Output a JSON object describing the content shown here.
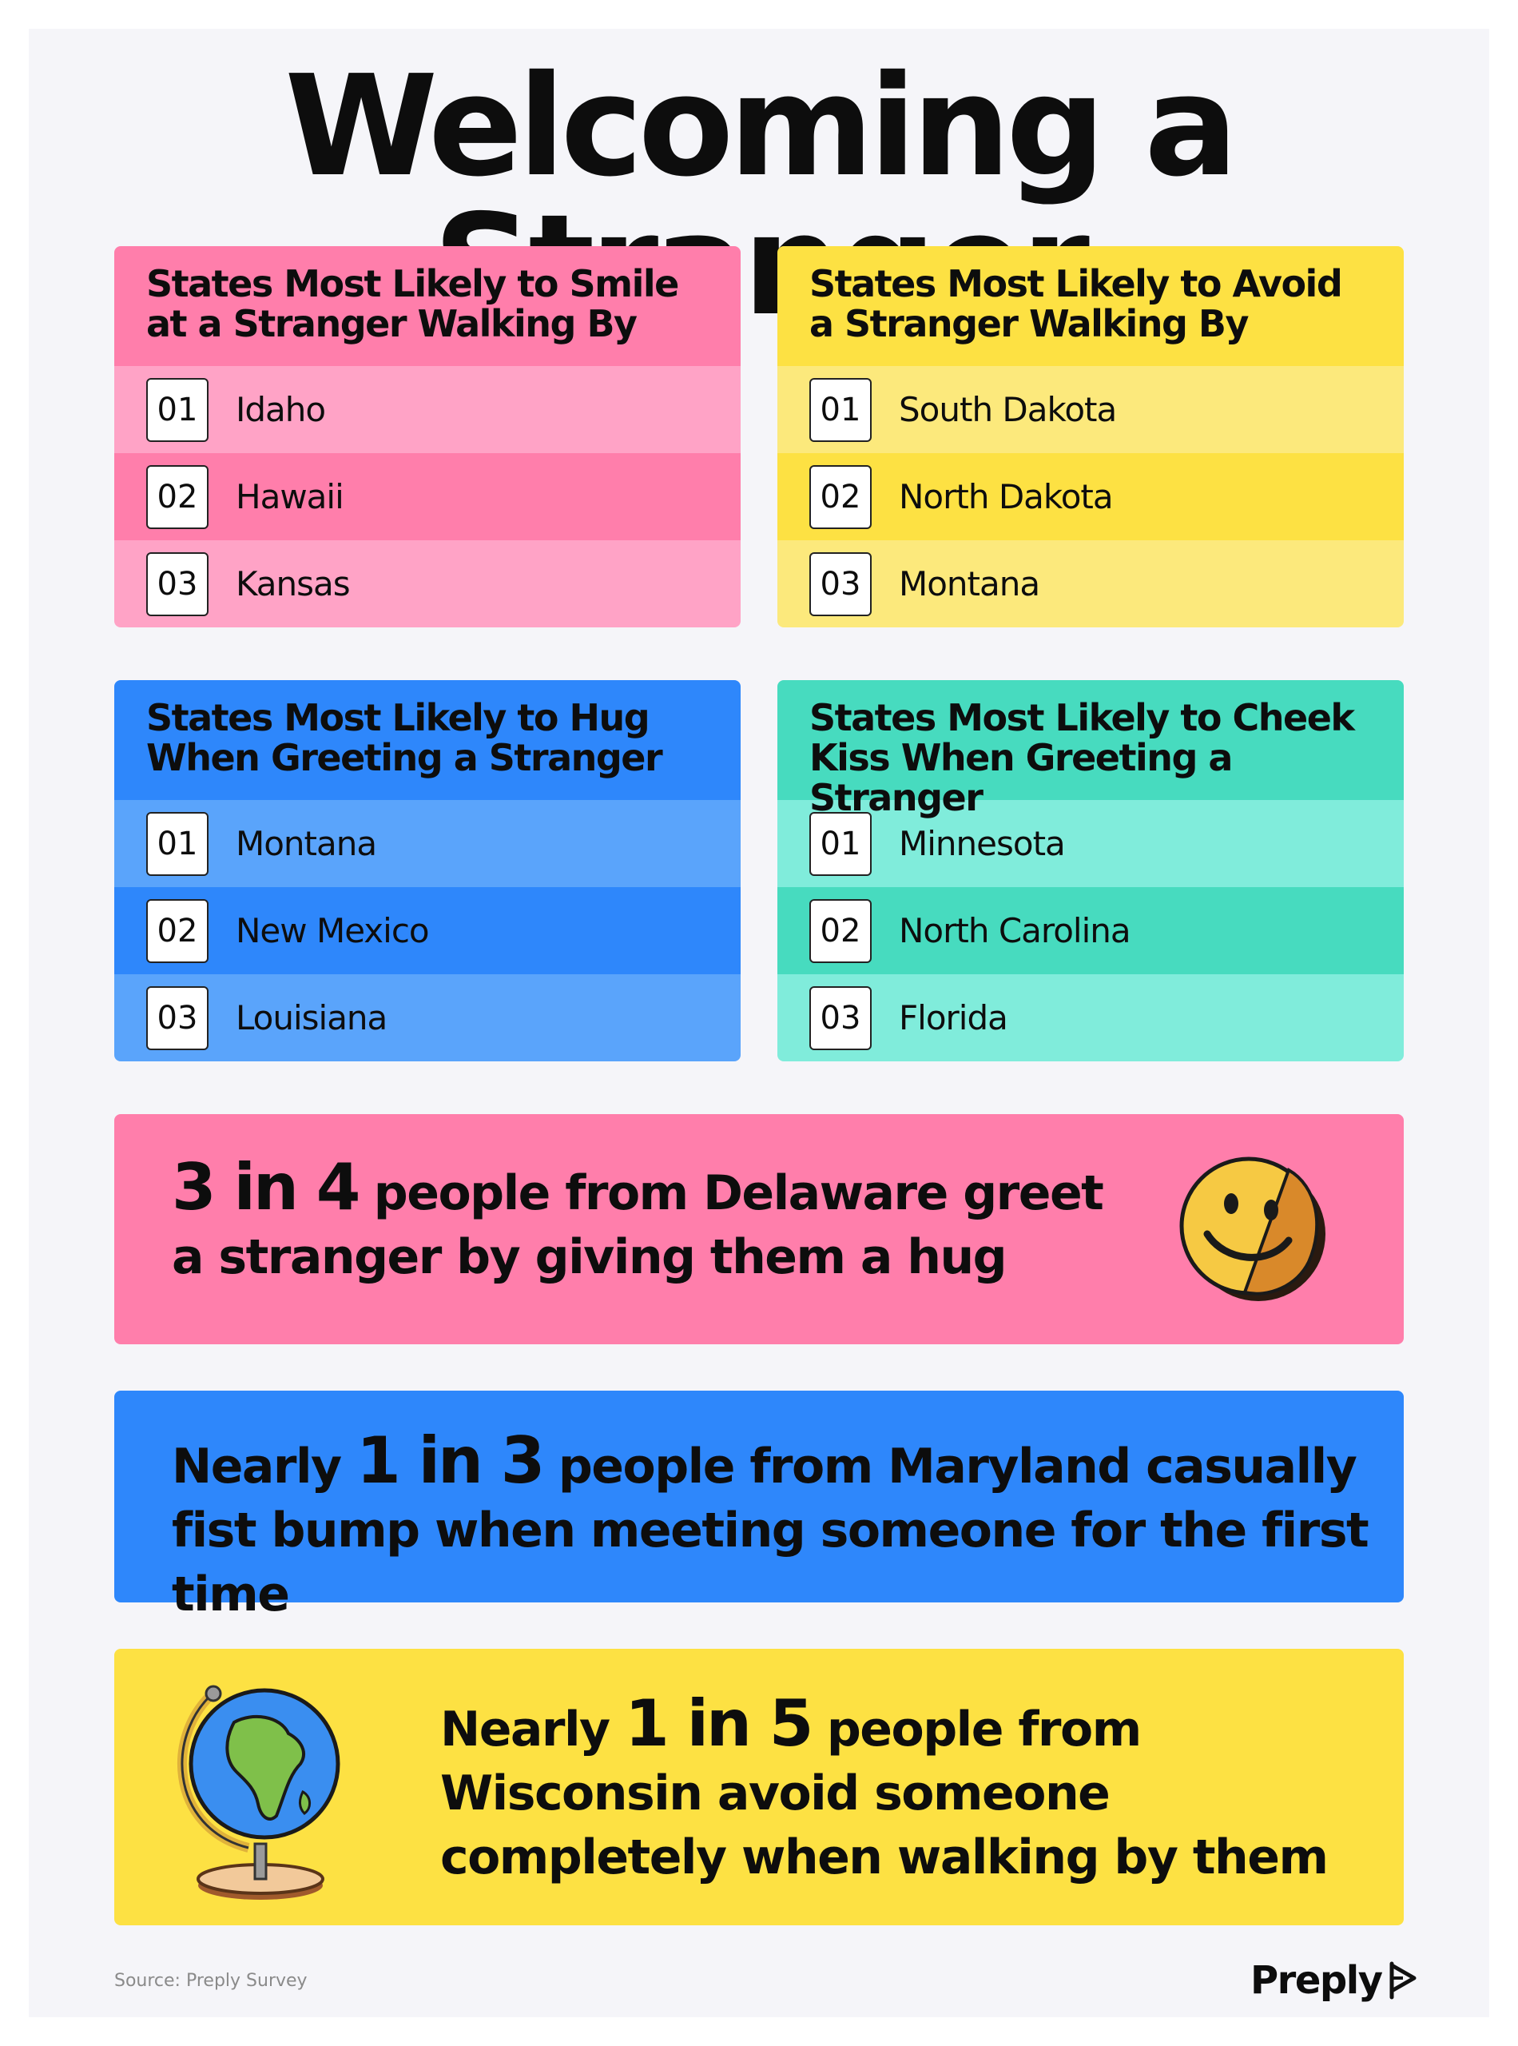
{
  "title": "Welcoming a Stranger",
  "panels": [
    {
      "heading": "States Most Likely to Smile at a Stranger Walking By",
      "items": [
        {
          "rank": "01",
          "state": "Idaho"
        },
        {
          "rank": "02",
          "state": "Hawaii"
        },
        {
          "rank": "03",
          "state": "Kansas"
        }
      ],
      "color": "#ff7eab"
    },
    {
      "heading": "States Most Likely to Avoid a Stranger Walking By",
      "items": [
        {
          "rank": "01",
          "state": "South Dakota"
        },
        {
          "rank": "02",
          "state": "North Dakota"
        },
        {
          "rank": "03",
          "state": "Montana"
        }
      ],
      "color": "#fde143"
    },
    {
      "heading": "States Most Likely to Hug When Greeting a Stranger",
      "items": [
        {
          "rank": "01",
          "state": "Montana"
        },
        {
          "rank": "02",
          "state": "New Mexico"
        },
        {
          "rank": "03",
          "state": "Louisiana"
        }
      ],
      "color": "#2e87fb"
    },
    {
      "heading": "States Most Likely to Cheek Kiss When Greeting a Stranger",
      "items": [
        {
          "rank": "01",
          "state": "Minnesota"
        },
        {
          "rank": "02",
          "state": "North Carolina"
        },
        {
          "rank": "03",
          "state": "Florida"
        }
      ],
      "color": "#47dbbf"
    }
  ],
  "stats": [
    {
      "prefix": "",
      "big": "3 in 4",
      "text": " people from Delaware greet a stranger by giving them a hug",
      "icon": "smile-icon",
      "color": "#ff7eab"
    },
    {
      "prefix": "Nearly ",
      "big": "1 in 3",
      "text": " people from Maryland casually fist bump when meeting someone for the first time",
      "color": "#2e87fb"
    },
    {
      "prefix": "Nearly ",
      "big": "1 in 5",
      "text": " people from Wisconsin avoid someone completely when walking by them",
      "icon": "globe-icon",
      "color": "#fde143"
    }
  ],
  "footer": {
    "source": "Source: Preply Survey",
    "logo": "Preply",
    "logo_icon": "preply-flag-icon"
  }
}
